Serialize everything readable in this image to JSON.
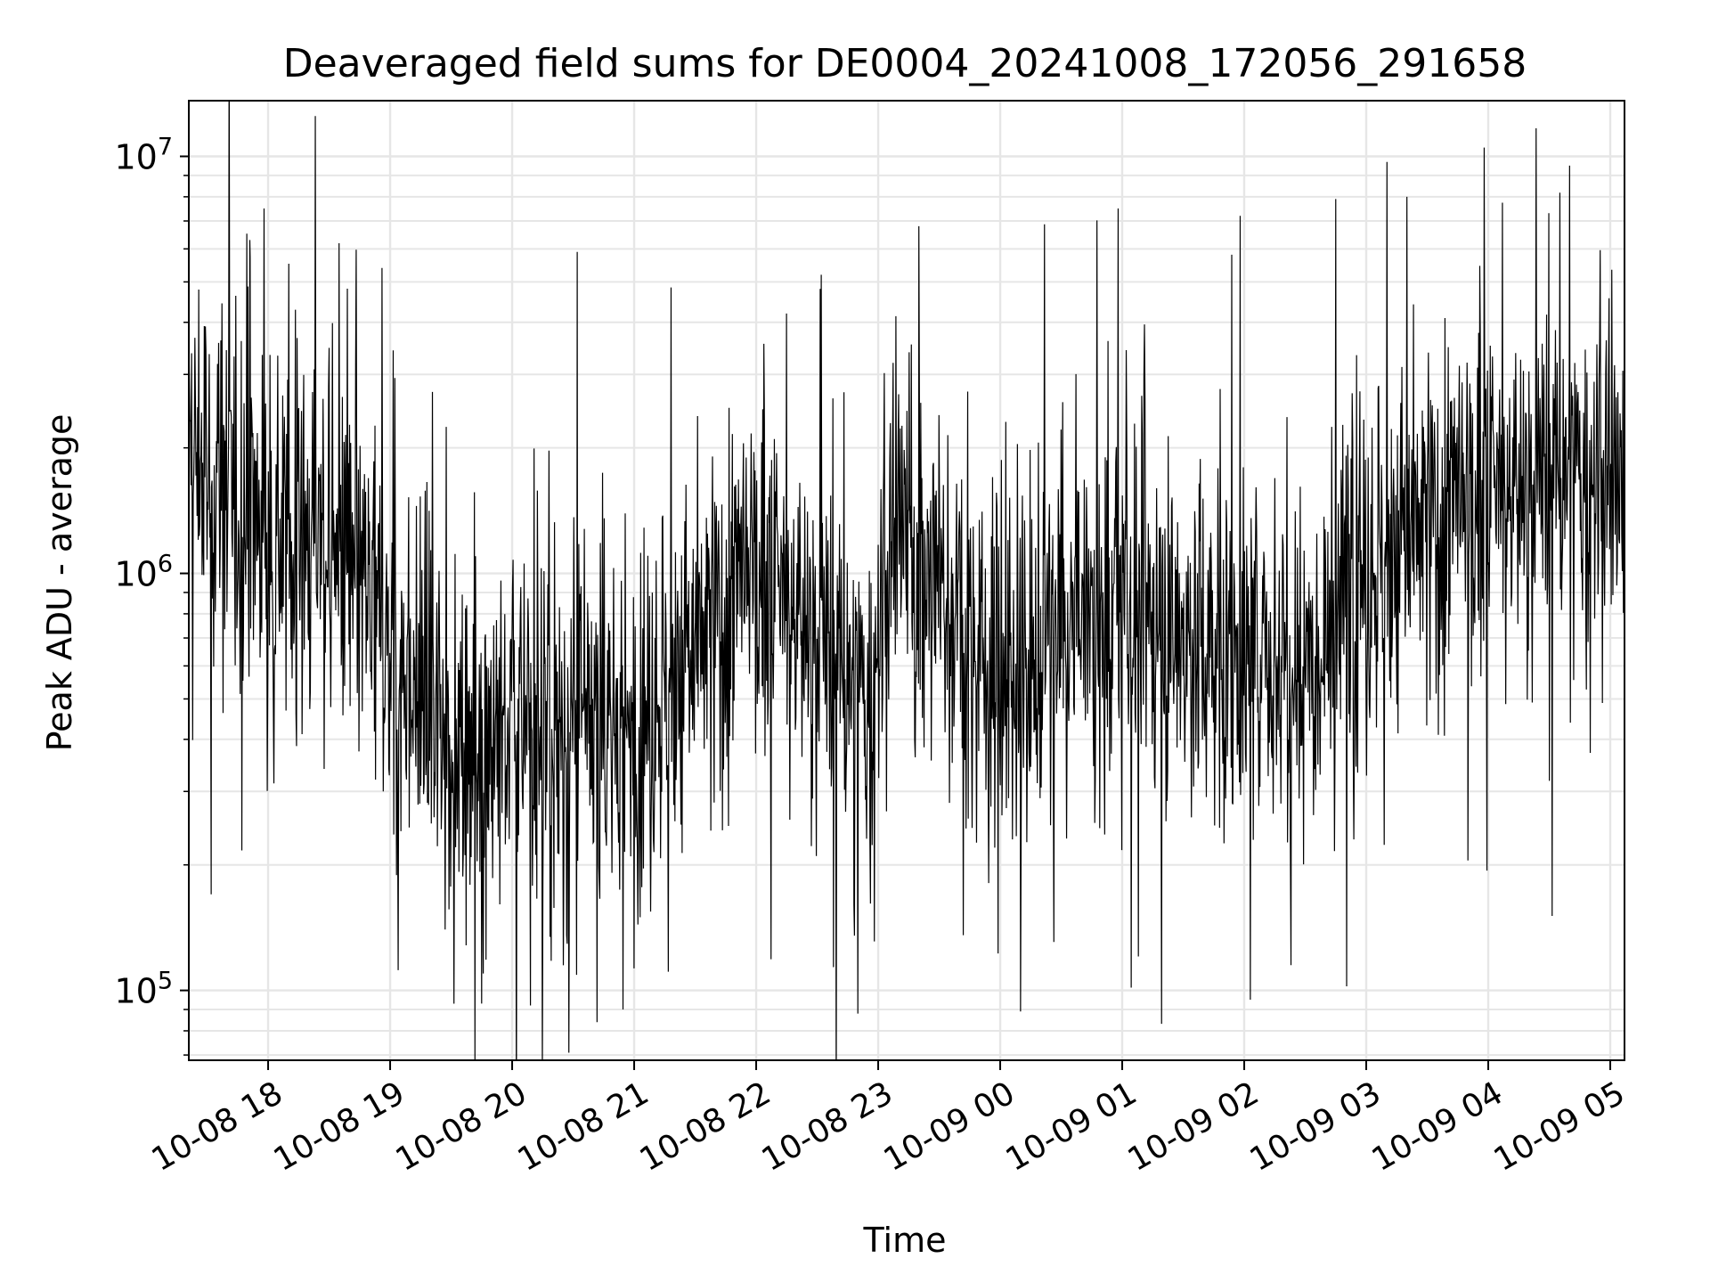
{
  "chart_data": {
    "type": "line",
    "title": "Deaveraged field sums for DE0004_20241008_172056_291658",
    "xlabel": "Time",
    "ylabel": "Peak ADU - average",
    "y_scale": "log",
    "grid": true,
    "legend": "none",
    "line_color": "#000000",
    "x_range": [
      "2024-10-08 17:21",
      "2024-10-09 05:07"
    ],
    "y_range": [
      68000,
      13600000
    ],
    "x_ticks": [
      {
        "t": "2024-10-08 18:00",
        "label": "10-08 18"
      },
      {
        "t": "2024-10-08 19:00",
        "label": "10-08 19"
      },
      {
        "t": "2024-10-08 20:00",
        "label": "10-08 20"
      },
      {
        "t": "2024-10-08 21:00",
        "label": "10-08 21"
      },
      {
        "t": "2024-10-08 22:00",
        "label": "10-08 22"
      },
      {
        "t": "2024-10-08 23:00",
        "label": "10-08 23"
      },
      {
        "t": "2024-10-09 00:00",
        "label": "10-09 00"
      },
      {
        "t": "2024-10-09 01:00",
        "label": "10-09 01"
      },
      {
        "t": "2024-10-09 02:00",
        "label": "10-09 02"
      },
      {
        "t": "2024-10-09 03:00",
        "label": "10-09 03"
      },
      {
        "t": "2024-10-09 04:00",
        "label": "10-09 04"
      },
      {
        "t": "2024-10-09 05:00",
        "label": "10-09 05"
      }
    ],
    "y_ticks": [
      {
        "value": 100000,
        "base": "10",
        "exp": "5"
      },
      {
        "value": 1000000,
        "base": "10",
        "exp": "6"
      },
      {
        "value": 10000000,
        "base": "10",
        "exp": "7"
      }
    ],
    "series": [
      {
        "trend_x": [
          "2024-10-08 17:21",
          "2024-10-08 18:00",
          "2024-10-08 18:30",
          "2024-10-08 19:00",
          "2024-10-08 19:30",
          "2024-10-08 20:00",
          "2024-10-08 20:30",
          "2024-10-08 21:00",
          "2024-10-08 21:30",
          "2024-10-08 22:00",
          "2024-10-08 22:30",
          "2024-10-08 22:55",
          "2024-10-08 23:10",
          "2024-10-08 23:30",
          "2024-10-09 00:00",
          "2024-10-09 00:30",
          "2024-10-09 01:00",
          "2024-10-09 01:30",
          "2024-10-09 02:00",
          "2024-10-09 02:30",
          "2024-10-09 03:00",
          "2024-10-09 03:30",
          "2024-10-09 04:00",
          "2024-10-09 04:30",
          "2024-10-09 05:07"
        ],
        "trend_median": [
          1900000,
          1300000,
          1200000,
          650000,
          400000,
          420000,
          400000,
          420000,
          650000,
          1000000,
          700000,
          450000,
          1300000,
          900000,
          550000,
          700000,
          800000,
          700000,
          600000,
          650000,
          1000000,
          1300000,
          1500000,
          1700000,
          1500000
        ],
        "spikes": [
          {
            "t": "2024-10-08 17:58",
            "value": 7500000
          },
          {
            "t": "2024-10-08 17:51",
            "value": 6300000
          },
          {
            "t": "2024-10-08 18:56",
            "value": 5400000
          },
          {
            "t": "2024-10-08 20:32",
            "value": 5900000
          },
          {
            "t": "2024-10-08 22:32",
            "value": 5200000
          },
          {
            "t": "2024-10-08 23:20",
            "value": 6800000
          },
          {
            "t": "2024-10-09 00:58",
            "value": 7500000
          },
          {
            "t": "2024-10-09 01:58",
            "value": 7200000
          },
          {
            "t": "2024-10-09 02:45",
            "value": 7900000
          },
          {
            "t": "2024-10-09 03:20",
            "value": 8000000
          },
          {
            "t": "2024-10-09 03:58",
            "value": 10500000
          },
          {
            "t": "2024-10-09 04:40",
            "value": 9500000
          }
        ],
        "dips": [
          {
            "t": "2024-10-08 17:32",
            "value": 170000
          },
          {
            "t": "2024-10-08 19:45",
            "value": 93000
          },
          {
            "t": "2024-10-08 20:09",
            "value": 92000
          },
          {
            "t": "2024-10-08 22:50",
            "value": 88000
          },
          {
            "t": "2024-10-09 00:10",
            "value": 89000
          },
          {
            "t": "2024-10-09 02:03",
            "value": 95000
          },
          {
            "t": "2024-10-09 02:23",
            "value": 115000
          },
          {
            "t": "2024-10-09 03:50",
            "value": 205000
          }
        ]
      }
    ]
  }
}
